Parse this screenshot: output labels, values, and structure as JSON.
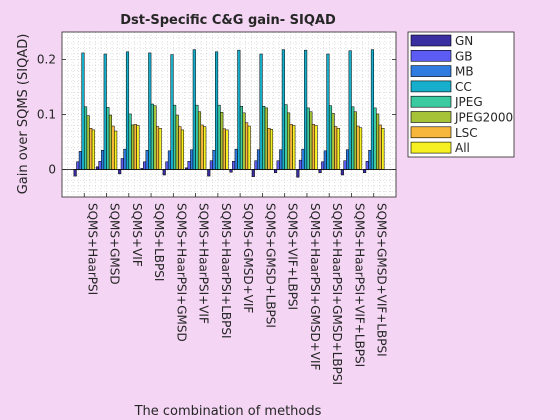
{
  "chart_data": {
    "type": "bar",
    "title": "Dst-Specific C&G gain- SIQAD",
    "xlabel": "The combination of methods",
    "ylabel": "Gain over SQMS (SIQAD)",
    "ylim": [
      -0.05,
      0.25
    ],
    "yticks": [
      0,
      0.1,
      0.2
    ],
    "ytick_labels": [
      "0",
      "0.1",
      "0.2"
    ],
    "grid": true,
    "legend_position": "top-right outside",
    "categories": [
      "SQMS+HaarPSI",
      "SQMS+GMSD",
      "SQMS+VIF",
      "SQMS+LBPSI",
      "SQMS+HaarPSI+GMSD",
      "SQMS+HaarPSI+VIF",
      "SQMS+HaarPSI+LBPSI",
      "SQMS+GMSD+VIF",
      "SQMS+GMSD+LBPSI",
      "SQMS+VIF+LBPSI",
      "SQMS+HaarPSI+GMSD+VIF",
      "SQMS+HaarPSI+GMSD+LBPSI",
      "SQMS+HaarPSI+VIF+LBPSI",
      "SQMS+GMSD+VIF+LBPSI"
    ],
    "series": [
      {
        "name": "GN",
        "color": "#3A2FA0",
        "values": [
          -0.012,
          0.005,
          -0.008,
          0.002,
          -0.01,
          0.003,
          -0.012,
          -0.005,
          -0.013,
          -0.006,
          -0.014,
          -0.006,
          -0.01,
          -0.006
        ]
      },
      {
        "name": "GB",
        "color": "#5C5CF2",
        "values": [
          0.014,
          0.015,
          0.02,
          0.014,
          0.014,
          0.015,
          0.016,
          0.015,
          0.016,
          0.016,
          0.017,
          0.014,
          0.016,
          0.015
        ]
      },
      {
        "name": "MB",
        "color": "#2F7BE0",
        "values": [
          0.033,
          0.035,
          0.037,
          0.035,
          0.034,
          0.036,
          0.035,
          0.037,
          0.036,
          0.036,
          0.037,
          0.034,
          0.036,
          0.035
        ]
      },
      {
        "name": "CC",
        "color": "#16AECB",
        "values": [
          0.212,
          0.21,
          0.214,
          0.212,
          0.209,
          0.218,
          0.214,
          0.217,
          0.21,
          0.218,
          0.217,
          0.21,
          0.216,
          0.218
        ]
      },
      {
        "name": "JPEG",
        "color": "#3CCAA0",
        "values": [
          0.114,
          0.113,
          0.101,
          0.119,
          0.117,
          0.117,
          0.117,
          0.115,
          0.115,
          0.118,
          0.112,
          0.116,
          0.114,
          0.112
        ]
      },
      {
        "name": "JPEG2000",
        "color": "#A6C338",
        "values": [
          0.098,
          0.099,
          0.081,
          0.116,
          0.099,
          0.105,
          0.104,
          0.103,
          0.112,
          0.103,
          0.105,
          0.102,
          0.105,
          0.101
        ]
      },
      {
        "name": "LSC",
        "color": "#F7B63C",
        "values": [
          0.075,
          0.079,
          0.082,
          0.078,
          0.078,
          0.081,
          0.074,
          0.085,
          0.075,
          0.082,
          0.082,
          0.078,
          0.079,
          0.081
        ]
      },
      {
        "name": "All",
        "color": "#F6F022",
        "values": [
          0.072,
          0.07,
          0.08,
          0.075,
          0.072,
          0.078,
          0.072,
          0.079,
          0.073,
          0.08,
          0.08,
          0.075,
          0.076,
          0.075
        ]
      }
    ]
  }
}
